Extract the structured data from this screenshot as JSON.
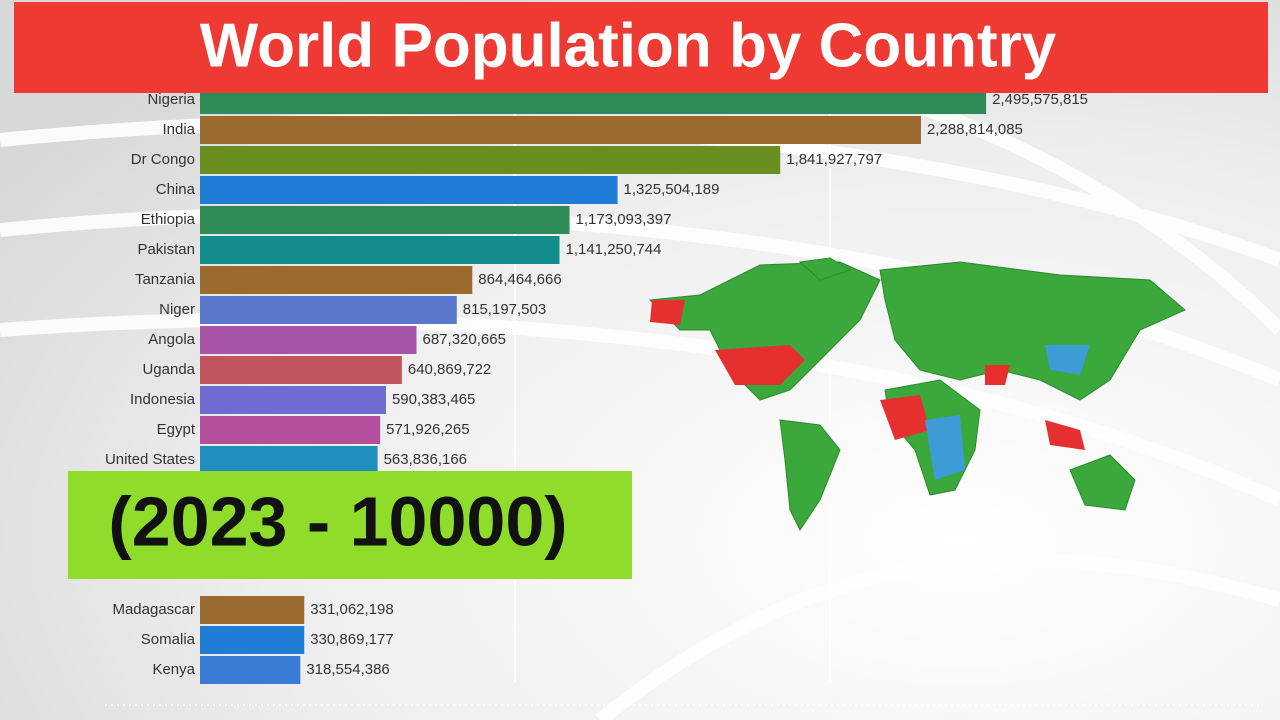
{
  "chart_data": {
    "type": "bar",
    "orientation": "horizontal",
    "title": "World Population by Country",
    "subtitle": "(2023 - 10000)",
    "categories": [
      "Nigeria",
      "India",
      "Dr Congo",
      "China",
      "Ethiopia",
      "Pakistan",
      "Tanzania",
      "Niger",
      "Angola",
      "Uganda",
      "Indonesia",
      "Egypt",
      "United States",
      "Madagascar",
      "Somalia",
      "Kenya"
    ],
    "values": [
      2495575815,
      2288814085,
      1841927797,
      1325504189,
      1173093397,
      1141250744,
      864464666,
      815197503,
      687320665,
      640869722,
      590383465,
      571926265,
      563836166,
      331062198,
      330869177,
      318554386
    ],
    "value_labels": [
      "2,495,575,815",
      "2,288,814,085",
      "1,841,927,797",
      "1,325,504,189",
      "1,173,093,397",
      "1,141,250,744",
      "864,464,666",
      "815,197,503",
      "687,320,665",
      "640,869,722",
      "590,383,465",
      "571,926,265",
      "563,836,166",
      "331,062,198",
      "330,869,177",
      "318,554,386"
    ],
    "colors": [
      "#2e8b57",
      "#9b6a2f",
      "#6b8e23",
      "#1f7bd3",
      "#2e8b57",
      "#138c8c",
      "#9b6a2f",
      "#5b77cc",
      "#a855a8",
      "#c0555f",
      "#6f6ccf",
      "#b44f9e",
      "#1f8fbf",
      "#9b6a2f",
      "#1f7bd3",
      "#3a7bd5"
    ],
    "xlim": [
      0,
      2500000000
    ],
    "xticks": [
      1000000000,
      2000000000
    ]
  }
}
